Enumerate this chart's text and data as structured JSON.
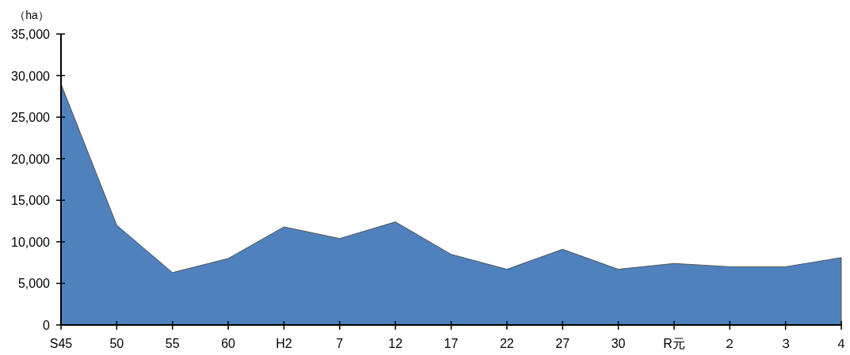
{
  "chart_data": {
    "type": "area",
    "ylabel": "（ha）",
    "categories": [
      "S45",
      "50",
      "55",
      "60",
      "H2",
      "7",
      "12",
      "17",
      "22",
      "27",
      "30",
      "R元",
      "２",
      "３",
      "４"
    ],
    "values": [
      29000,
      12000,
      6300,
      8000,
      11800,
      10400,
      12400,
      8500,
      6700,
      9100,
      6700,
      7400,
      7000,
      7000,
      8100
    ],
    "color": "#4f81bd",
    "ylim": [
      0,
      35000
    ],
    "yticks": [
      0,
      {
        "value": 5000,
        "label": "5,000"
      },
      {
        "value": 10000,
        "label": "10,000"
      },
      {
        "value": 15000,
        "label": "15,000"
      },
      {
        "value": 20000,
        "label": "20,000"
      },
      {
        "value": 25000,
        "label": "25,000"
      },
      {
        "value": 30000,
        "label": "30,000"
      },
      {
        "value": 35000,
        "label": "35,000"
      }
    ]
  }
}
